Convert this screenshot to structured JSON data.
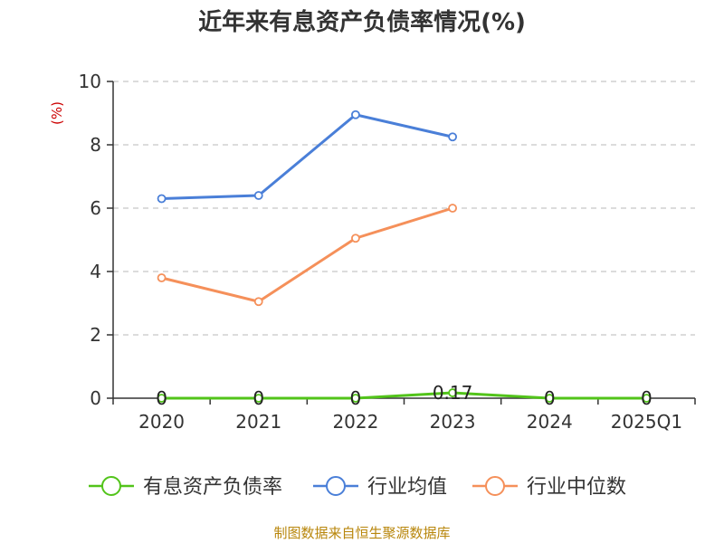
{
  "chart_data": {
    "type": "line",
    "title": "近年来有息资产负债率情况(%)",
    "ylabel": "(%)",
    "xlabel": "",
    "categories": [
      "2020",
      "2021",
      "2022",
      "2023",
      "2024",
      "2025Q1"
    ],
    "ylim": [
      0,
      10
    ],
    "yticks": [
      0,
      2,
      4,
      6,
      8,
      10
    ],
    "grid": true,
    "legend": "bottom",
    "series": [
      {
        "name": "有息资产负债率",
        "color": "#52c41a",
        "values": [
          0,
          0,
          0,
          0.17,
          0,
          0
        ],
        "labels": [
          "0",
          "0",
          "0",
          "0.17",
          "0",
          "0"
        ]
      },
      {
        "name": "行业均值",
        "color": "#4a7fd8",
        "values": [
          6.3,
          6.4,
          8.95,
          8.25,
          null,
          null
        ]
      },
      {
        "name": "行业中位数",
        "color": "#f5905a",
        "values": [
          3.8,
          3.05,
          5.05,
          6.0,
          null,
          null
        ]
      }
    ]
  },
  "source": "制图数据来自恒生聚源数据库"
}
